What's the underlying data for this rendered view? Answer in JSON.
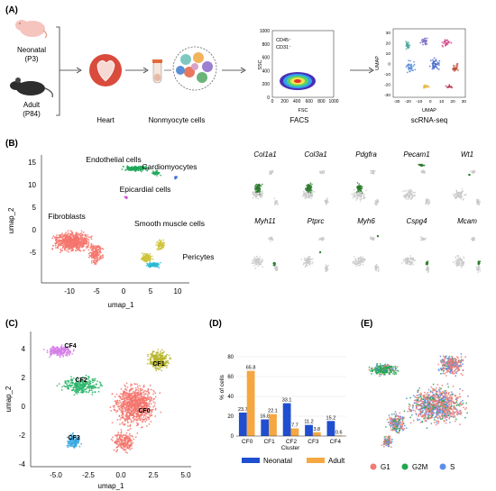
{
  "panel_a": {
    "label": "(A)",
    "neonatal_label": "Neonatal",
    "neonatal_age": "(P3)",
    "adult_label": "Adult",
    "adult_age": "(P84)",
    "heart_label": "Heart",
    "nonmyocyte_label": "Nonmyocyte cells",
    "facs_label": "FACS",
    "facs_gate_line1": "CD45⁻",
    "facs_gate_line2": "CD31⁻",
    "facs_xlabel": "FSC",
    "facs_ylabel": "SSC",
    "facs_xticks": [
      "0",
      "200",
      "400",
      "600",
      "800",
      "1000"
    ],
    "facs_yticks": [
      "0",
      "200",
      "400",
      "600",
      "800",
      "1000"
    ],
    "scrna_label": "scRNA-seq",
    "umap_small_xlabel": "UMAP",
    "umap_small_ylabel": "UMAP",
    "umap_small_xticks": [
      "-30",
      "-20",
      "-10",
      "0",
      "10",
      "20",
      "30"
    ],
    "umap_small_yticks": [
      "30",
      "20",
      "10",
      "0",
      "-10",
      "-20",
      "-30"
    ]
  },
  "panel_b": {
    "label": "(B)",
    "xlabel": "umap_1",
    "ylabel": "umap_2",
    "xticks": [
      "-10",
      "-5",
      "0",
      "5",
      "10"
    ],
    "yticks": [
      "15",
      "10",
      "5",
      "0",
      "-5"
    ],
    "clusters": [
      "Endothelial cells",
      "Cardiomyocytes",
      "Epicardial cells",
      "Fibroblasts",
      "Smooth muscle cells",
      "Pericytes"
    ],
    "genes_row1": [
      "Col1a1",
      "Col3a1",
      "Pdgfra",
      "Pecam1",
      "Wt1"
    ],
    "genes_row2": [
      "Myh11",
      "Ptprc",
      "Myh6",
      "Cspg4",
      "Mcam"
    ]
  },
  "panel_c": {
    "label": "(C)",
    "xlabel": "umap_1",
    "ylabel": "umap_2",
    "xticks": [
      "-5.0",
      "-2.5",
      "0.0",
      "2.5",
      "5.0"
    ],
    "yticks": [
      "4",
      "2",
      "0",
      "-2",
      "-4"
    ],
    "clusters": [
      "CF4",
      "CF1",
      "CF2",
      "CF0",
      "CF3"
    ]
  },
  "panel_d": {
    "label": "(D)",
    "legend_neonatal": "Neonatal",
    "legend_adult": "Adult"
  },
  "panel_e": {
    "label": "(E)",
    "legend": [
      "G1",
      "G2M",
      "S"
    ]
  },
  "colors": {
    "neonatal": "#1f4fd0",
    "adult": "#f5a742",
    "fibro": "#f4766d",
    "green_expr": "#2d7a2d",
    "g1": "#f07b72",
    "g2m": "#22a650",
    "s": "#5e8ee8"
  },
  "chart_data": {
    "type": "bar",
    "title": "",
    "xlabel": "Cluster",
    "ylabel": "% of cells",
    "categories": [
      "CF0",
      "CF1",
      "CF2",
      "CF3",
      "CF4"
    ],
    "series": [
      {
        "name": "Neonatal",
        "values": [
          23.7,
          16.8,
          33.1,
          11.2,
          15.2
        ]
      },
      {
        "name": "Adult",
        "values": [
          65.8,
          22.1,
          7.7,
          3.8,
          0.6
        ]
      }
    ],
    "ylim": [
      0,
      80
    ],
    "yticks": [
      "0",
      "20",
      "40",
      "60",
      "80"
    ],
    "legend": "bottom"
  }
}
